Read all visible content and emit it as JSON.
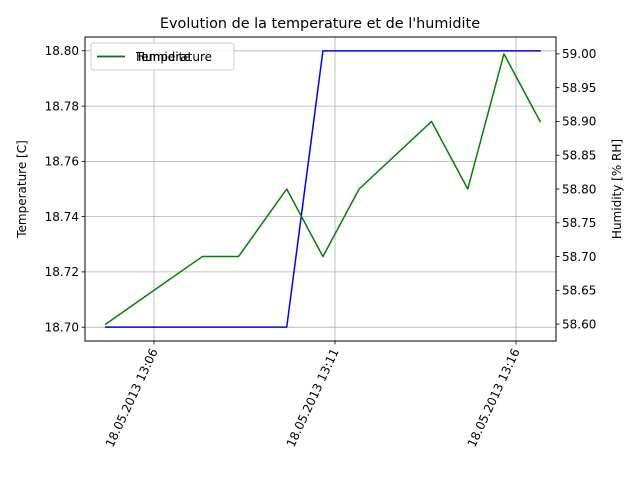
{
  "chart_data": {
    "type": "line",
    "title": "Evolution de la temperature et de l'humidite",
    "ylabel": "Temperature [C]",
    "y2label": "Humidity [% RH]",
    "x_ticks": [
      "18.05.2013 13:06",
      "18.05.2013 13:11",
      "18.05.2013 13:16"
    ],
    "y_ticks": [
      "18.70",
      "18.72",
      "18.74",
      "18.76",
      "18.78",
      "18.80"
    ],
    "y2_ticks": [
      "58.60",
      "58.65",
      "58.70",
      "58.75",
      "58.80",
      "58.85",
      "58.90",
      "58.95",
      "59.00"
    ],
    "ylim": [
      18.695,
      18.805
    ],
    "y2lim": [
      58.575,
      59.025
    ],
    "grid": true,
    "legend_placement": "upper-left",
    "legend_overlap_text": "Humidite",
    "series": [
      {
        "name": "Temperature",
        "axis": "left",
        "color": "#0000ff",
        "x": [
          "18.05.2013 13:04:40",
          "18.05.2013 13:09:40",
          "18.05.2013 13:10:40",
          "18.05.2013 13:16:40"
        ],
        "values": [
          18.7,
          18.7,
          18.8,
          18.8
        ]
      },
      {
        "name": "Humidite",
        "axis": "right",
        "color": "#008000",
        "x": [
          "18.05.2013 13:04:40",
          "18.05.2013 13:07:20",
          "18.05.2013 13:08:20",
          "18.05.2013 13:09:40",
          "18.05.2013 13:10:40",
          "18.05.2013 13:11:40",
          "18.05.2013 13:13:40",
          "18.05.2013 13:14:40",
          "18.05.2013 13:15:40",
          "18.05.2013 13:16:40"
        ],
        "values": [
          58.6,
          58.7,
          58.7,
          58.8,
          58.7,
          58.8,
          58.9,
          58.8,
          59.0,
          58.9
        ]
      }
    ]
  }
}
